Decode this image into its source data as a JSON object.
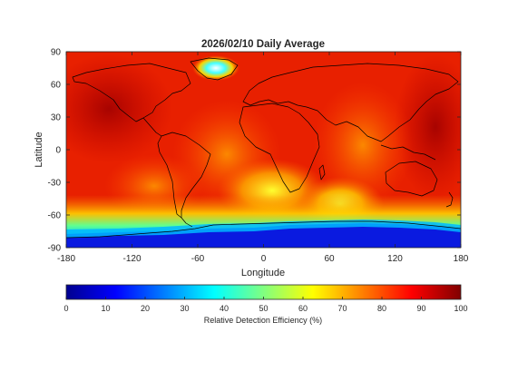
{
  "title": "2026/02/10 Daily Average",
  "x_axis": {
    "label": "Longitude",
    "range": [
      -180,
      180
    ],
    "ticks": [
      "-180",
      "-120",
      "-60",
      "0",
      "60",
      "120",
      "180"
    ]
  },
  "y_axis": {
    "label": "Latitude",
    "range": [
      -90,
      90
    ],
    "ticks": [
      "90",
      "60",
      "30",
      "0",
      "-30",
      "-60",
      "-90"
    ]
  },
  "colorbar": {
    "label": "Relative Detection Efficiency (%)",
    "range": [
      0,
      100
    ],
    "ticks": [
      "0",
      "10",
      "20",
      "30",
      "40",
      "50",
      "60",
      "70",
      "80",
      "90",
      "100"
    ],
    "colormap": "jet",
    "colormap_stops": [
      "#00008f",
      "#0000ff",
      "#0080ff",
      "#00ffff",
      "#80ff80",
      "#ffff00",
      "#ff8000",
      "#ff0000",
      "#800000"
    ]
  },
  "map_colors": {
    "ocean_background": "#ee2200",
    "coastline": "#000000",
    "antarctic_low": "#0a1ae0",
    "greenland_high": "#ffffff"
  }
}
